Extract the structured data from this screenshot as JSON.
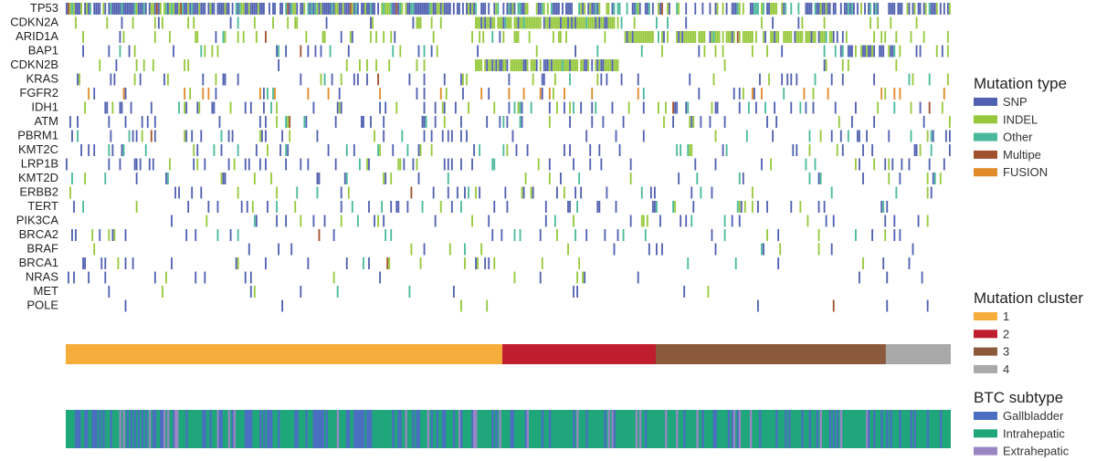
{
  "chart_data": {
    "type": "heatmap",
    "title": "",
    "n_samples": 480,
    "genes": [
      "TP53",
      "CDKN2A",
      "ARID1A",
      "BAP1",
      "CDKN2B",
      "KRAS",
      "FGFR2",
      "IDH1",
      "ATM",
      "PBRM1",
      "KMT2C",
      "LRP1B",
      "KMT2D",
      "ERBB2",
      "TERT",
      "PIK3CA",
      "BRCA2",
      "BRAF",
      "BRCA1",
      "NRAS",
      "MET",
      "POLE"
    ],
    "mutation_type_legend": {
      "title": "Mutation type",
      "entries": [
        {
          "label": "SNP",
          "color": "#5060b0"
        },
        {
          "label": "INDEL",
          "color": "#96c83c"
        },
        {
          "label": "Other",
          "color": "#4ab99b"
        },
        {
          "label": "Multipe",
          "color": "#a0522d"
        },
        {
          "label": "FUSION",
          "color": "#e08a2a"
        }
      ]
    },
    "mutation_cluster_legend": {
      "title": "Mutation cluster",
      "entries": [
        {
          "label": "1",
          "color": "#f6ad3c"
        },
        {
          "label": "2",
          "color": "#be1e2d"
        },
        {
          "label": "3",
          "color": "#8b5a3c"
        },
        {
          "label": "4",
          "color": "#a9a9a9"
        }
      ]
    },
    "mutation_cluster_samples": [
      {
        "cluster": "1",
        "start": 0,
        "end": 222
      },
      {
        "cluster": "2",
        "start": 222,
        "end": 300
      },
      {
        "cluster": "3",
        "start": 300,
        "end": 417
      },
      {
        "cluster": "4",
        "start": 417,
        "end": 450
      }
    ],
    "btc_subtype_legend": {
      "title": "BTC subtype",
      "entries": [
        {
          "label": "Gallbladder",
          "color": "#4a6fc0"
        },
        {
          "label": "Intrahepatic",
          "color": "#1fa67a"
        },
        {
          "label": "Extrahepatic",
          "color": "#9b86c4"
        }
      ]
    },
    "gene_mutation_frequency": [
      0.58,
      0.22,
      0.24,
      0.1,
      0.14,
      0.12,
      0.08,
      0.14,
      0.1,
      0.09,
      0.12,
      0.1,
      0.1,
      0.08,
      0.09,
      0.07,
      0.06,
      0.06,
      0.05,
      0.04,
      0.02,
      0.02
    ]
  }
}
